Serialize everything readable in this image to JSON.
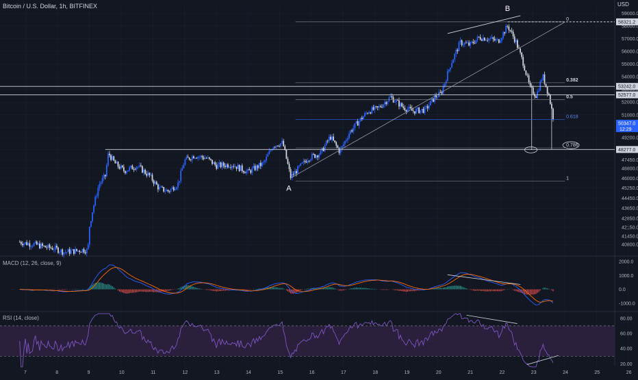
{
  "header": {
    "symbol": "Bitcoin / U.S. Dollar, 1h, BITFINEX",
    "currency": "USD"
  },
  "colors": {
    "background": "#131722",
    "grid": "#1e222d",
    "up": "#2962ff",
    "down": "#d1d4dc",
    "text": "#b2b5be",
    "macd": "#2962ff",
    "signal": "#ff6d00",
    "hist_up": "#26a69a",
    "hist_down": "#ef5350",
    "rsi": "#7e57c2",
    "rsi_band": "#2a1f3d",
    "fib": "#787b86",
    "fib_0618": "#2962ff",
    "line": "#ffffff"
  },
  "chart_data": [
    {
      "type": "candlestick",
      "pane": "price",
      "ylim": [
        40000,
        59500
      ],
      "y_ticks": [
        40800,
        41450,
        42150,
        42850,
        43650,
        44450,
        45250,
        46000,
        46800,
        47450,
        48250,
        49200,
        50000,
        51000,
        52000,
        53000,
        54000,
        55000,
        56000,
        57000,
        58000,
        59000
      ],
      "x_tick_labels": [
        "7",
        "8",
        "9",
        "10",
        "11",
        "12",
        "13",
        "14",
        "15",
        "16",
        "17",
        "18",
        "19",
        "20",
        "21",
        "22",
        "23",
        "24",
        "25",
        "26"
      ],
      "price_labels": [
        {
          "value": 58321.2,
          "text": "58321.2",
          "style": "line"
        },
        {
          "value": 53242.0,
          "text": "53242.0",
          "style": "line"
        },
        {
          "value": 52577.0,
          "text": "52577.0",
          "style": "line"
        },
        {
          "value": 50347.0,
          "text": "50347.0",
          "style": "current"
        },
        {
          "value": 48277.0,
          "text": "48277.0",
          "style": "line"
        }
      ],
      "countdown": "12:29",
      "fib_levels": [
        {
          "ratio": "0",
          "price": 58321.2
        },
        {
          "ratio": "0.382",
          "price": 53530
        },
        {
          "ratio": "0.5",
          "price": 52200
        },
        {
          "ratio": "0.618",
          "price": 50650
        },
        {
          "ratio": "0.786",
          "price": 48400
        },
        {
          "ratio": "1",
          "price": 45800
        }
      ],
      "annotations": [
        {
          "text": "A",
          "x": 15.3,
          "y": 45800
        },
        {
          "text": "B",
          "x": 22.2,
          "y": 58321.2
        }
      ],
      "path_anchors": [
        [
          6.8,
          41000
        ],
        [
          7.0,
          40900
        ],
        [
          7.3,
          40800
        ],
        [
          7.6,
          40600
        ],
        [
          7.9,
          40500
        ],
        [
          8.2,
          40200
        ],
        [
          8.6,
          40300
        ],
        [
          8.8,
          40400
        ],
        [
          8.95,
          40300
        ],
        [
          9.0,
          42200
        ],
        [
          9.1,
          43500
        ],
        [
          9.3,
          45500
        ],
        [
          9.5,
          46200
        ],
        [
          9.6,
          48000
        ],
        [
          9.8,
          47200
        ],
        [
          10.1,
          46600
        ],
        [
          10.5,
          47000
        ],
        [
          10.9,
          46200
        ],
        [
          11.2,
          45200
        ],
        [
          11.5,
          45000
        ],
        [
          11.8,
          45600
        ],
        [
          12.0,
          47400
        ],
        [
          12.3,
          47800
        ],
        [
          12.7,
          47600
        ],
        [
          13.0,
          47000
        ],
        [
          13.5,
          47100
        ],
        [
          14.0,
          46500
        ],
        [
          14.5,
          47200
        ],
        [
          14.8,
          48600
        ],
        [
          15.1,
          48800
        ],
        [
          15.35,
          46100
        ],
        [
          15.6,
          46800
        ],
        [
          15.9,
          47600
        ],
        [
          16.3,
          48000
        ],
        [
          16.6,
          49300
        ],
        [
          16.9,
          48100
        ],
        [
          17.2,
          49600
        ],
        [
          17.5,
          50500
        ],
        [
          17.8,
          51300
        ],
        [
          18.1,
          51500
        ],
        [
          18.5,
          52400
        ],
        [
          18.9,
          51600
        ],
        [
          19.2,
          51300
        ],
        [
          19.6,
          51400
        ],
        [
          19.9,
          52400
        ],
        [
          20.1,
          52700
        ],
        [
          20.4,
          55000
        ],
        [
          20.7,
          56700
        ],
        [
          21.0,
          56500
        ],
        [
          21.3,
          57100
        ],
        [
          21.6,
          57000
        ],
        [
          21.9,
          56800
        ],
        [
          22.2,
          58000
        ],
        [
          22.45,
          56800
        ],
        [
          22.7,
          55000
        ],
        [
          22.9,
          53100
        ],
        [
          23.1,
          52500
        ],
        [
          23.3,
          54100
        ],
        [
          23.5,
          52500
        ],
        [
          23.65,
          50600
        ]
      ]
    },
    {
      "type": "macd",
      "pane": "macd",
      "title": "MACD (12, 26, close, 9)",
      "ylim": [
        -1600,
        2300
      ],
      "y_ticks": [
        2000,
        1000,
        0,
        -1000
      ],
      "y_tick_labels": [
        "2000.0",
        "1000.0",
        "0.0",
        "-1000.0"
      ]
    },
    {
      "type": "rsi",
      "pane": "rsi",
      "title": "RSI (14, close)",
      "ylim": [
        15,
        87
      ],
      "y_ticks": [
        80,
        60,
        40,
        20
      ],
      "y_tick_labels": [
        "80.00",
        "60.00",
        "40.00",
        "20.00"
      ],
      "bands": [
        70,
        30
      ]
    }
  ]
}
